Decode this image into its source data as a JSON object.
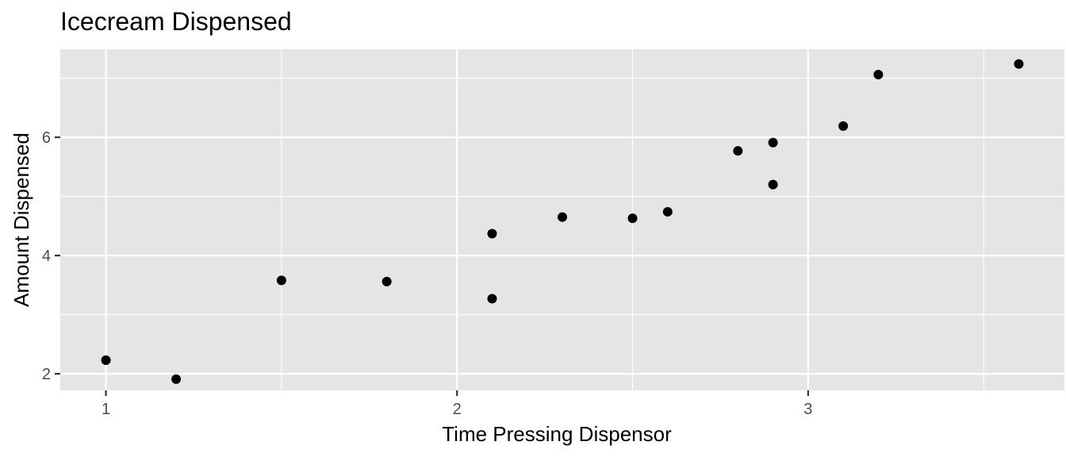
{
  "chart_data": {
    "type": "scatter",
    "title": "Icecream Dispensed",
    "xlabel": "Time Pressing Dispensor",
    "ylabel": "Amount Dispensed",
    "xlim": [
      0.87,
      3.73
    ],
    "ylim": [
      1.72,
      7.49
    ],
    "x_ticks": [
      1,
      2,
      3
    ],
    "x_tick_labels": [
      "1",
      "2",
      "3"
    ],
    "x_minor": [
      1.5,
      2.5,
      3.5
    ],
    "y_ticks": [
      2,
      4,
      6
    ],
    "y_tick_labels": [
      "2",
      "4",
      "6"
    ],
    "y_minor": [
      3,
      5,
      7
    ],
    "grid": true,
    "legend": "none",
    "colors": {
      "panel": "#e5e5e5",
      "grid": "#ffffff",
      "point": "#000000",
      "tick_text": "#4d4d4d"
    },
    "points": [
      {
        "x": 1.0,
        "y": 2.23
      },
      {
        "x": 1.2,
        "y": 1.91
      },
      {
        "x": 1.5,
        "y": 3.58
      },
      {
        "x": 1.8,
        "y": 3.56
      },
      {
        "x": 2.1,
        "y": 4.37
      },
      {
        "x": 2.1,
        "y": 3.27
      },
      {
        "x": 2.3,
        "y": 4.65
      },
      {
        "x": 2.5,
        "y": 4.63
      },
      {
        "x": 2.6,
        "y": 4.74
      },
      {
        "x": 2.8,
        "y": 5.77
      },
      {
        "x": 2.9,
        "y": 5.91
      },
      {
        "x": 2.9,
        "y": 5.2
      },
      {
        "x": 3.1,
        "y": 6.19
      },
      {
        "x": 3.2,
        "y": 7.06
      },
      {
        "x": 3.6,
        "y": 7.24
      }
    ]
  }
}
